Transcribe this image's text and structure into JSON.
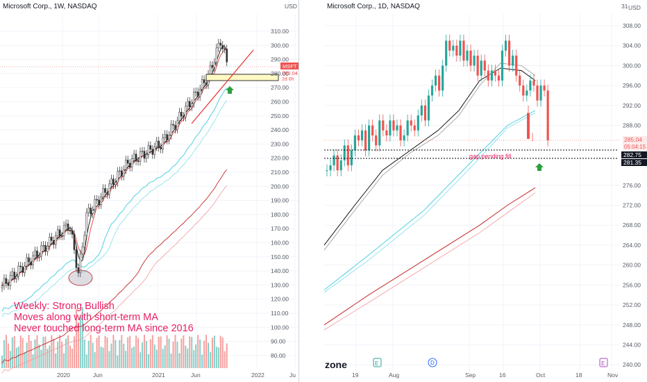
{
  "left": {
    "title": "Microsoft Corp., 1W, NASDAQ",
    "axis_top_label": "USD",
    "yticks": [
      "310.00",
      "300.00",
      "290.00",
      "280.00",
      "270.00",
      "260.00",
      "250.00",
      "240.00",
      "230.00",
      "220.00",
      "210.00",
      "200.00",
      "190.00",
      "180.00",
      "170.00",
      "160.00",
      "150.00",
      "140.00",
      "130.00",
      "120.00",
      "110.00",
      "100.00",
      "90.00",
      "80.00"
    ],
    "xticks": [
      "2020",
      "Jun",
      "2021",
      "Jun",
      "2022",
      "Ju"
    ],
    "price_tag": {
      "symbol": "MSFT",
      "value": "285.04",
      "countdown": "2d 6h"
    },
    "notes": [
      "Weekly: Strong Bullish",
      "Moves along with short-term MA",
      "Never touched long-term MA since 2016"
    ]
  },
  "right": {
    "title": "Microsoft Corp., 1D, NASDAQ",
    "axis_top_label": "USD",
    "axis_top_partial": "31",
    "yticks": [
      "308.00",
      "304.00",
      "300.00",
      "296.00",
      "292.00",
      "288.00",
      "276.00",
      "272.00",
      "268.00",
      "264.00",
      "260.00",
      "256.00",
      "252.00",
      "248.00",
      "244.00",
      "240.00"
    ],
    "xticks": [
      "19",
      "Aug",
      "Sep",
      "16",
      "Oct",
      "18",
      "Nov"
    ],
    "price_tag": {
      "value": "285.04",
      "countdown": "05:04:15"
    },
    "levels": [
      {
        "value": "282.75"
      },
      {
        "value": "281.35"
      }
    ],
    "gap_note": "gap pending fill",
    "events": [
      "E",
      "D",
      "E"
    ],
    "watermark": "zone"
  },
  "colors": {
    "up": "#26a69a",
    "down": "#ef5350",
    "text_pink": "#e91e63",
    "black_ma": "#000000",
    "teal_ma": "#4dd0e1",
    "red_ma": "#e53935",
    "trend": "#e53935"
  },
  "chart_data": [
    {
      "type": "candlestick",
      "title": "Microsoft Corp., 1W, NASDAQ",
      "ylim": [
        80,
        315
      ],
      "x": [
        "2020",
        "Jun",
        "2021",
        "Jun",
        "2022"
      ],
      "series": [
        {
          "values_close_approx": [
            155,
            160,
            170,
            185,
            150,
            165,
            180,
            185,
            200,
            205,
            210,
            215,
            205,
            210,
            225,
            230,
            235,
            245,
            255,
            260,
            265,
            280,
            290,
            300,
            305,
            295,
            285
          ]
        }
      ],
      "last_price": 285.04
    },
    {
      "type": "candlestick",
      "title": "Microsoft Corp., 1D, NASDAQ",
      "ylim": [
        240,
        310
      ],
      "x": [
        "19",
        "Aug",
        "Sep",
        "16",
        "Oct",
        "18",
        "Nov"
      ],
      "series": [
        {
          "values_close_approx": [
            280,
            283,
            285,
            281,
            284,
            289,
            287,
            288,
            286,
            289,
            305,
            303,
            302,
            300,
            304,
            298,
            297,
            305,
            304,
            299,
            296,
            298,
            296,
            285
          ]
        }
      ],
      "last_price": 285.04,
      "levels": [
        282.75,
        281.35
      ]
    }
  ]
}
